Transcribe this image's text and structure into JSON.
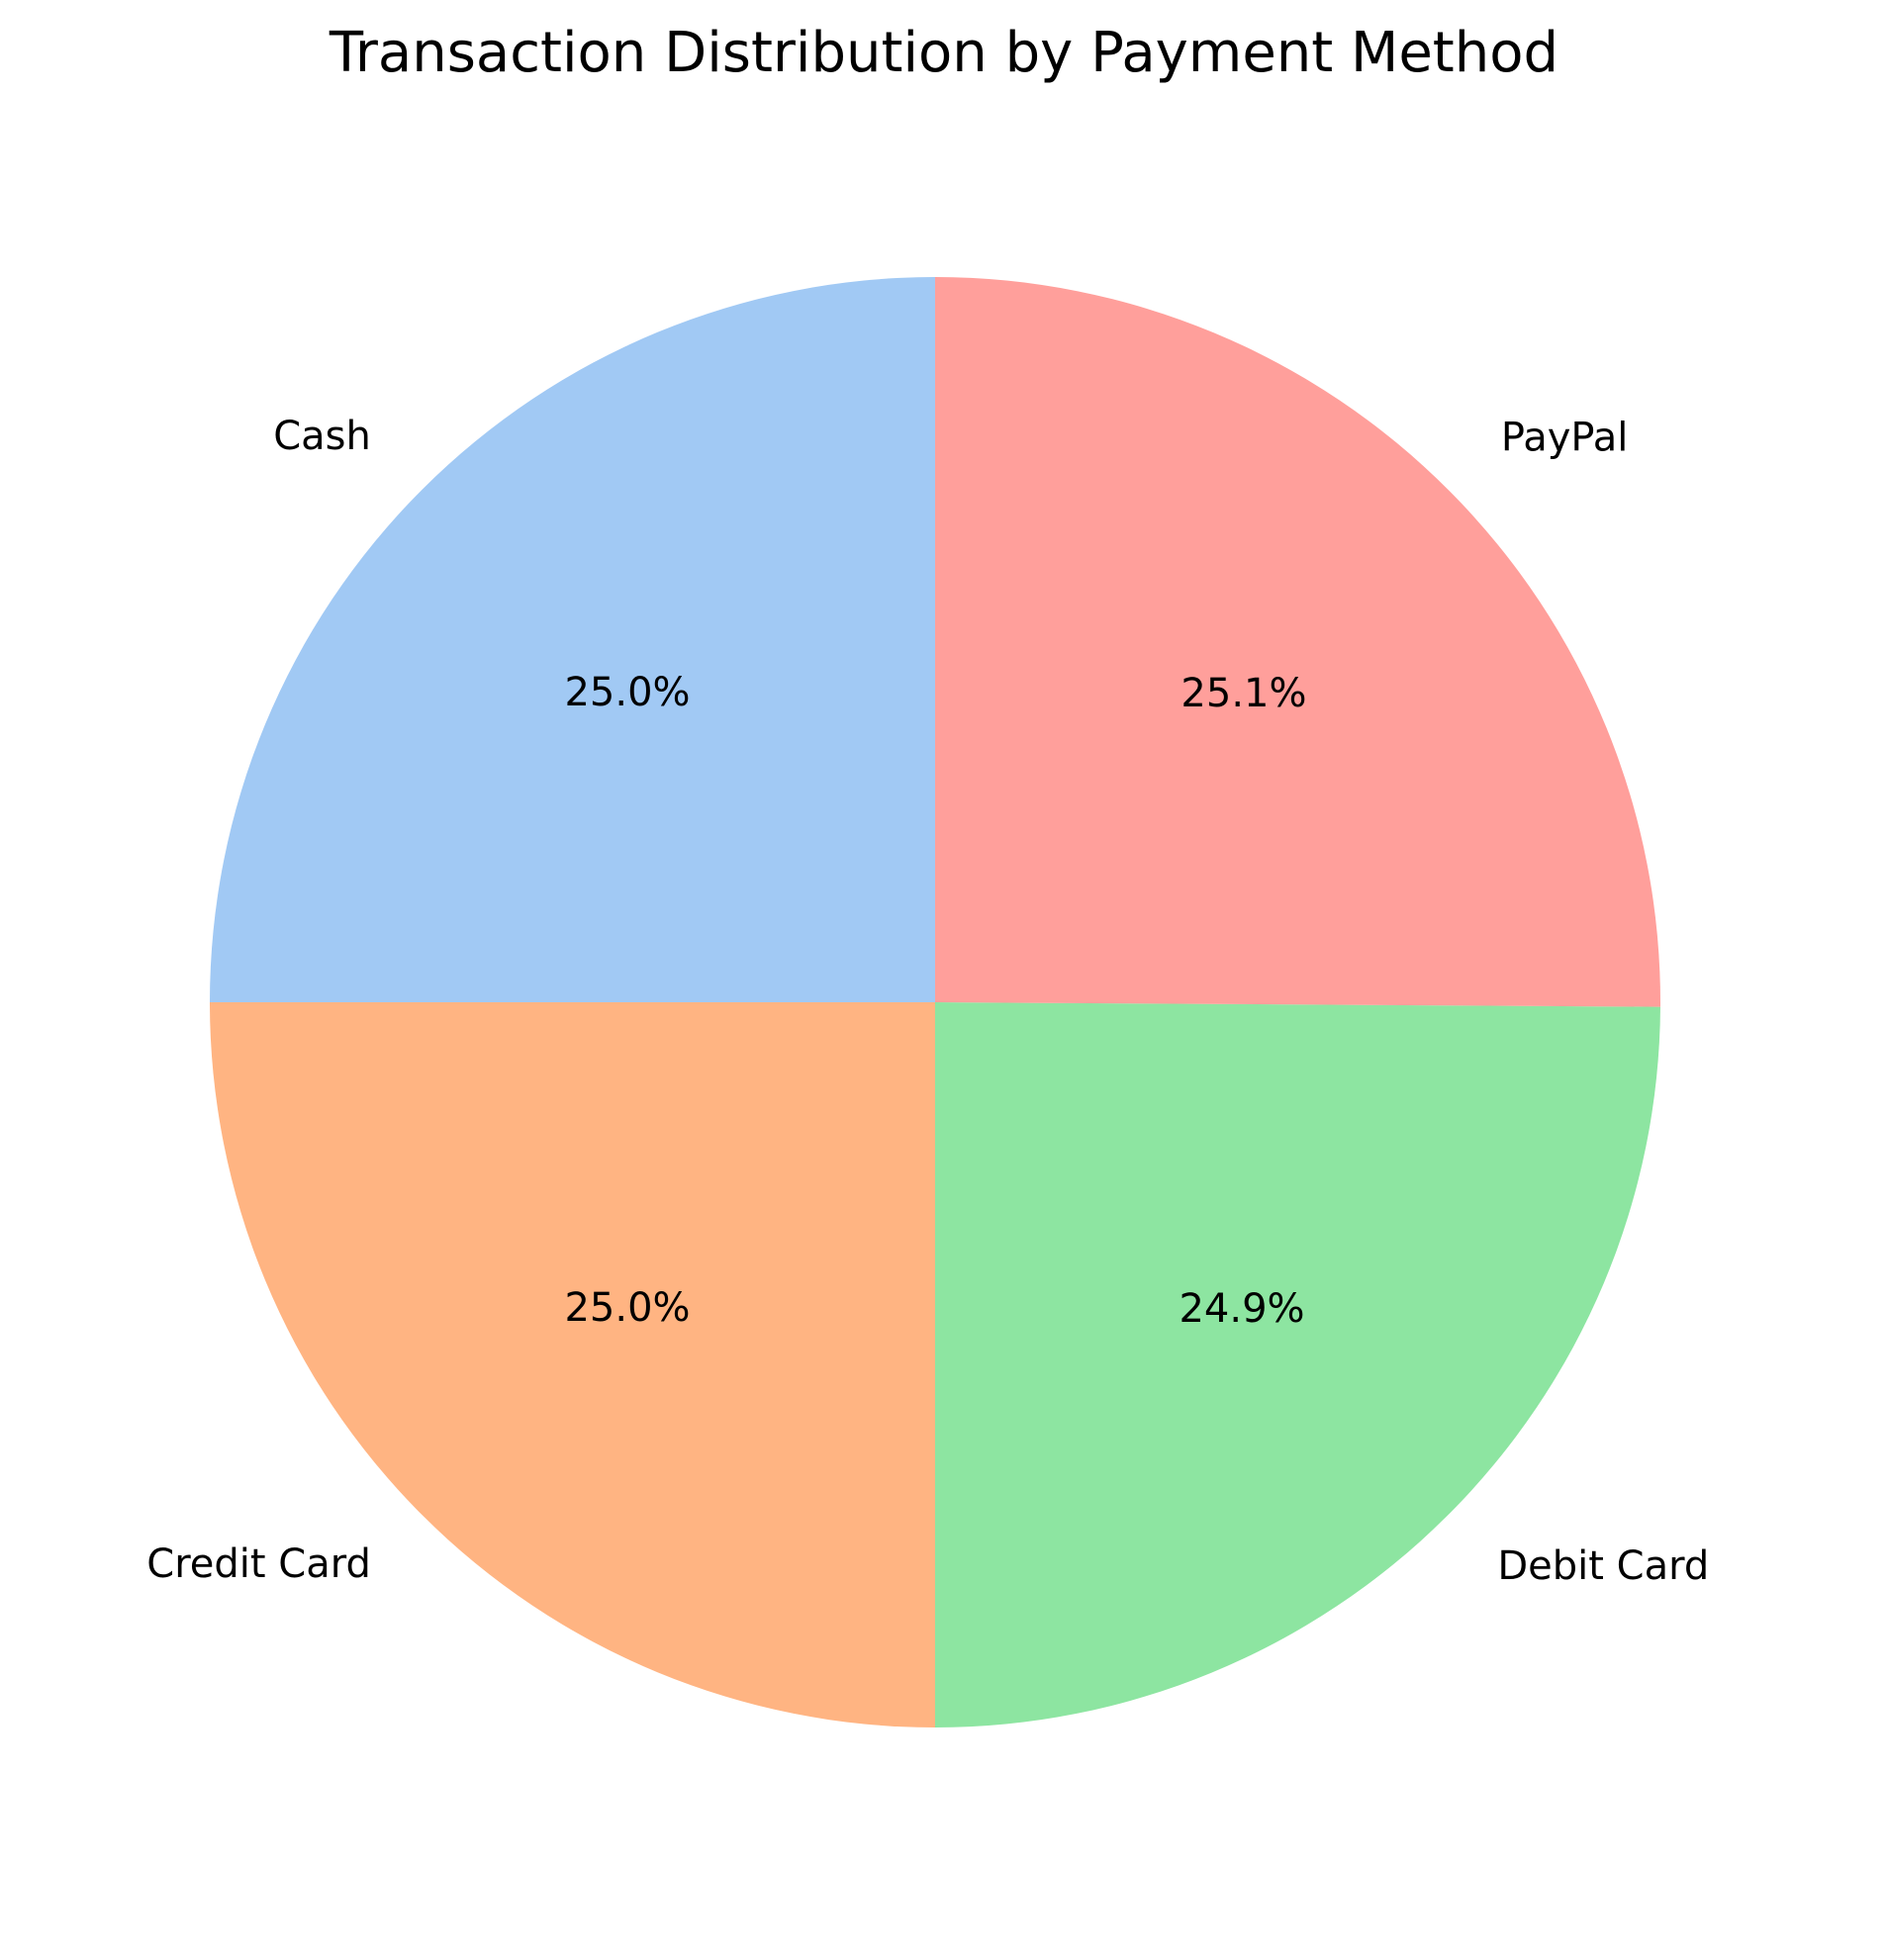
{
  "chart_data": {
    "type": "pie",
    "title": "Transaction Distribution by Payment Method",
    "categories": [
      "Cash",
      "Credit Card",
      "Debit Card",
      "PayPal"
    ],
    "values": [
      25.0,
      25.0,
      24.9,
      25.1
    ],
    "value_labels": [
      "25.0%",
      "25.0%",
      "24.9%",
      "25.1%"
    ],
    "colors": [
      "#a1c9f4",
      "#ffb482",
      "#8de5a1",
      "#ff9f9b"
    ],
    "start_angle_deg": 90,
    "direction": "counterclockwise",
    "legend": "none"
  }
}
